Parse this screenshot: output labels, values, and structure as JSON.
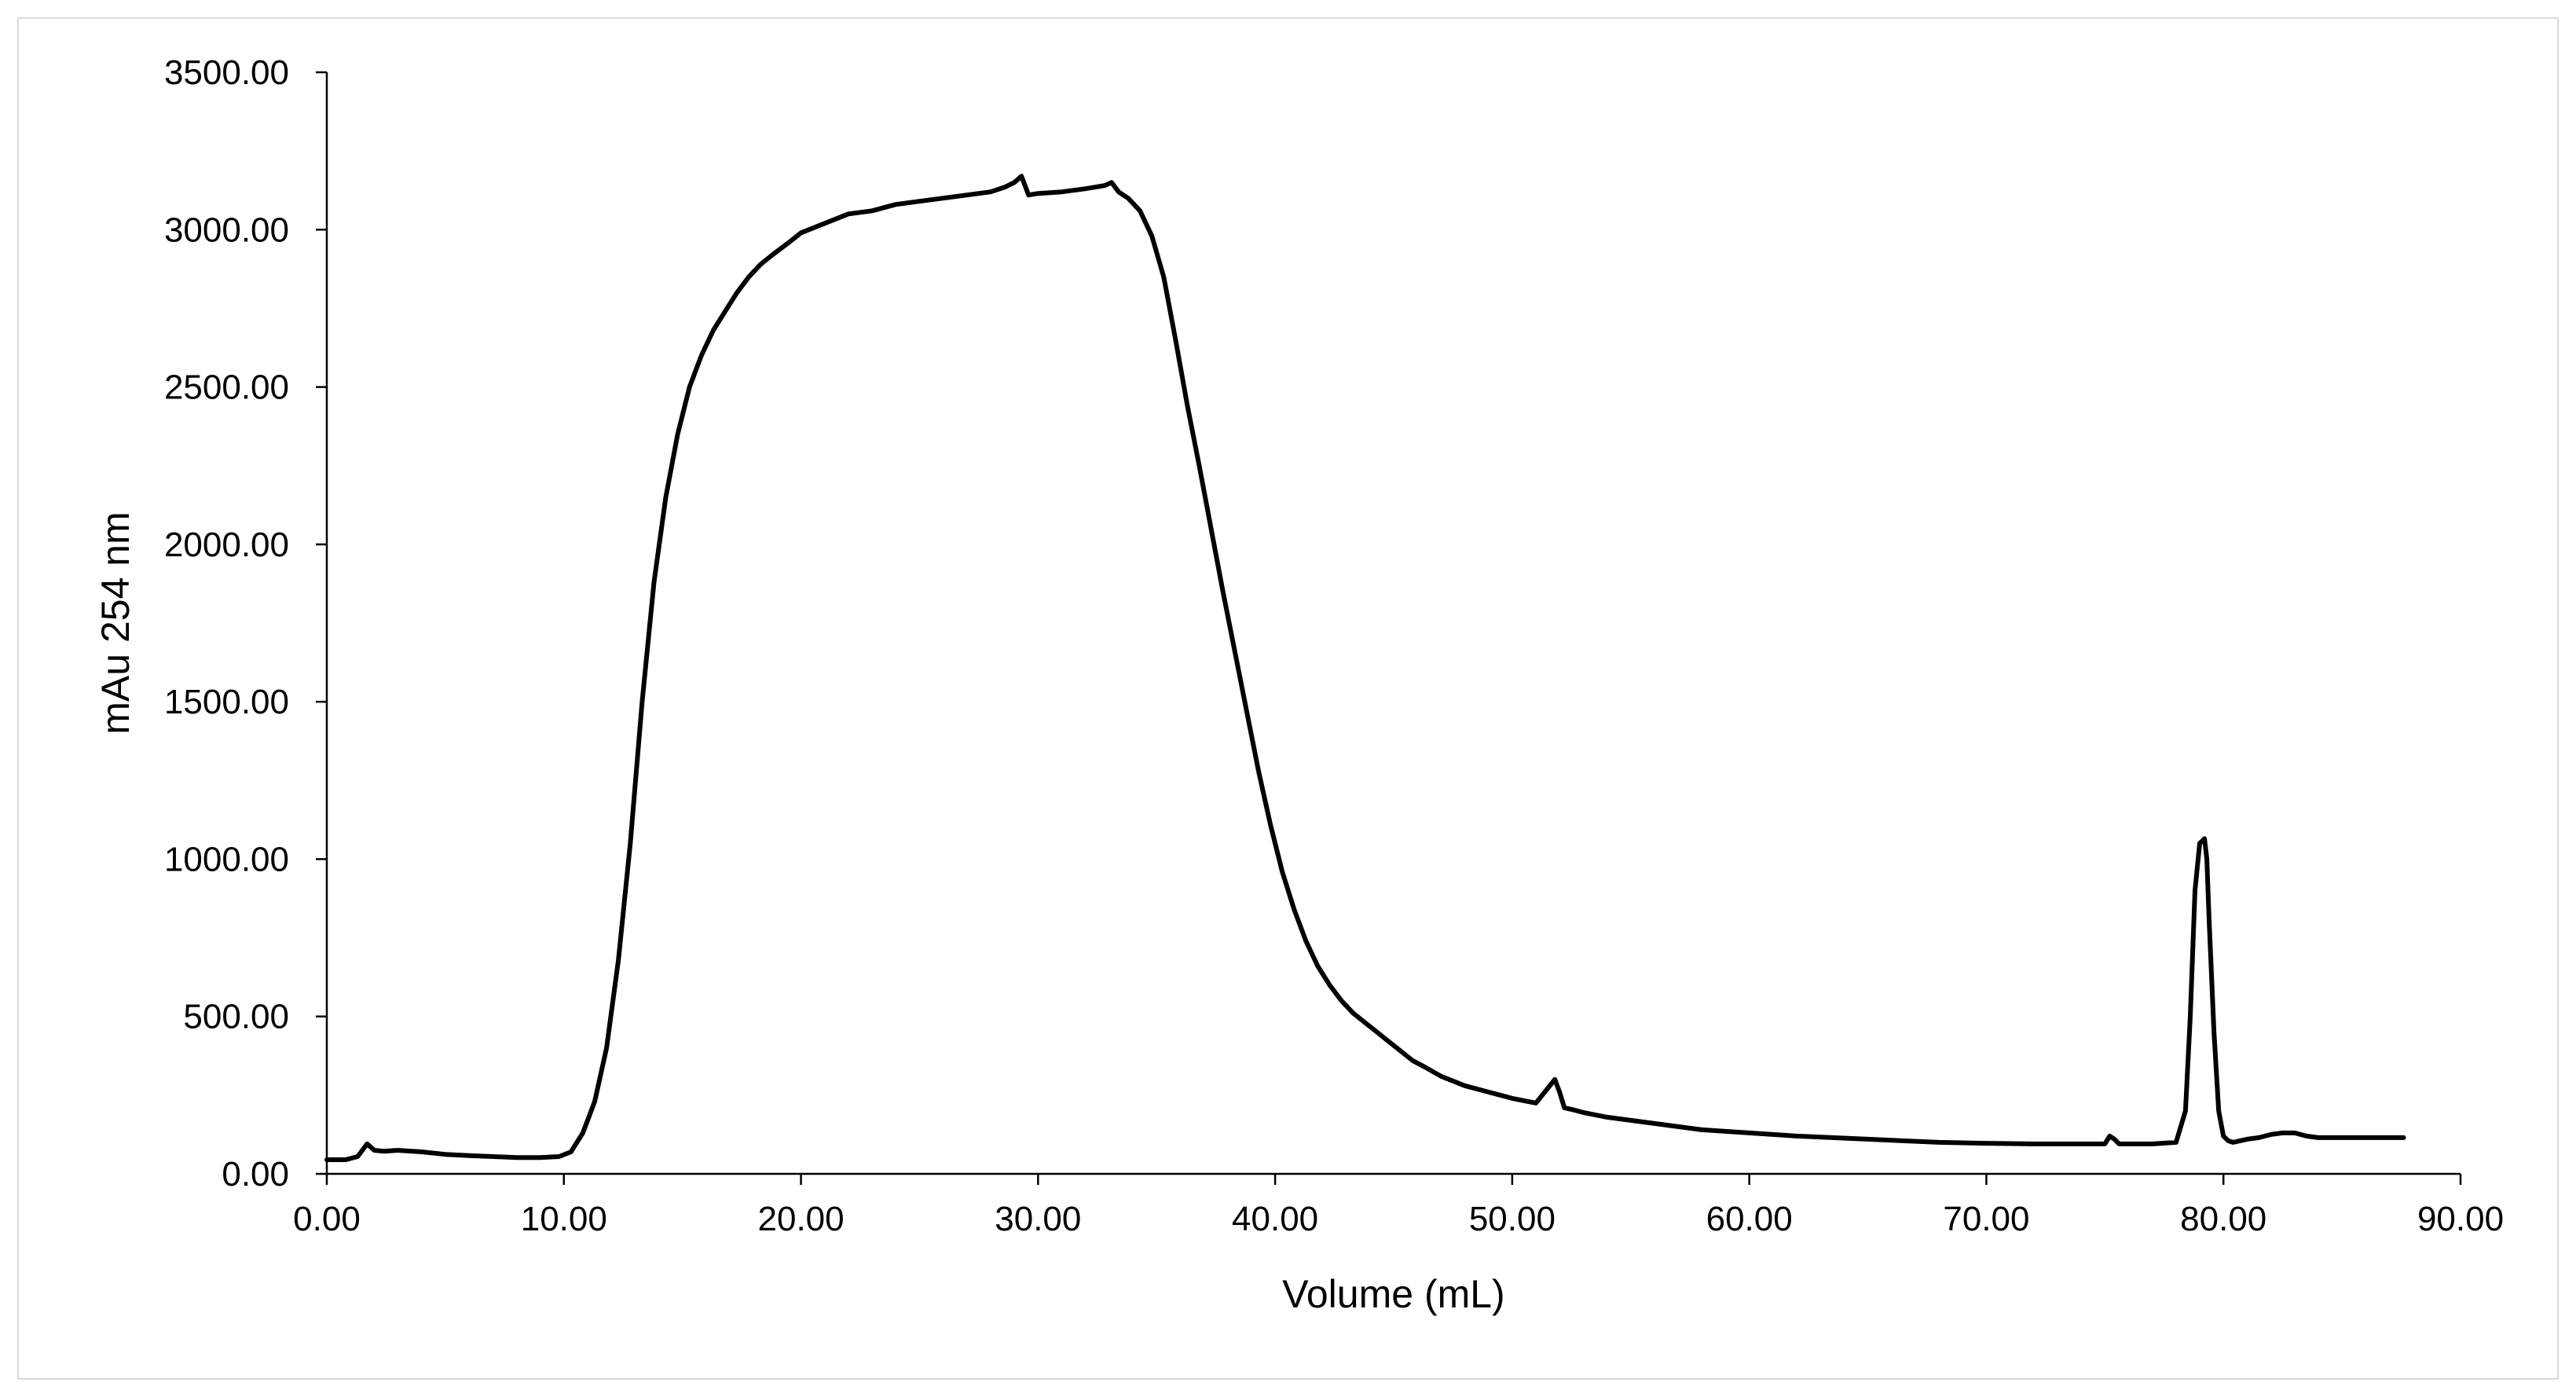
{
  "chart_data": {
    "type": "line",
    "title": "",
    "xlabel": "Volume (mL)",
    "ylabel": "mAu 254 nm",
    "xlim": [
      0,
      90
    ],
    "ylim": [
      0,
      3500
    ],
    "x_ticks": [
      "0.00",
      "10.00",
      "20.00",
      "30.00",
      "40.00",
      "50.00",
      "60.00",
      "70.00",
      "80.00",
      "90.00"
    ],
    "y_ticks": [
      "0.00",
      "500.00",
      "1000.00",
      "1500.00",
      "2000.00",
      "2500.00",
      "3000.00",
      "3500.00"
    ],
    "grid": false,
    "legend": "none",
    "line_color": "#000000",
    "series": [
      {
        "x": [
          0.0,
          0.8,
          1.3,
          1.7,
          2.0,
          2.4,
          3.0,
          4.0,
          5.0,
          6.0,
          7.0,
          8.0,
          9.0,
          9.8,
          10.3,
          10.8,
          11.3,
          11.8,
          12.3,
          12.8,
          13.3,
          13.8,
          14.3,
          14.8,
          15.3,
          15.8,
          16.3,
          16.8,
          17.3,
          17.8,
          18.3,
          18.8,
          19.5,
          20.0,
          21.0,
          22.0,
          23.0,
          24.0,
          25.0,
          26.0,
          27.0,
          28.0,
          28.6,
          29.0,
          29.3,
          29.6,
          30.0,
          31.0,
          32.0,
          32.8,
          33.1,
          33.4,
          33.8,
          34.3,
          34.8,
          35.3,
          35.8,
          36.3,
          36.8,
          37.3,
          37.8,
          38.3,
          38.8,
          39.3,
          39.8,
          40.3,
          40.8,
          41.3,
          41.8,
          42.3,
          42.8,
          43.3,
          43.8,
          44.3,
          44.8,
          45.3,
          45.8,
          46.3,
          47.0,
          48.0,
          49.0,
          50.0,
          51.0,
          51.8,
          52.0,
          52.2,
          52.5,
          53.0,
          54.0,
          56.0,
          58.0,
          60.0,
          62.0,
          65.0,
          68.0,
          70.0,
          72.0,
          74.0,
          75.0,
          75.2,
          75.4,
          75.6,
          76.0,
          77.0,
          78.0,
          78.4,
          78.6,
          78.8,
          79.0,
          79.2,
          79.3,
          79.4,
          79.6,
          79.8,
          80.0,
          80.2,
          80.4,
          80.7,
          81.0,
          81.5,
          82.0,
          82.5,
          83.0,
          83.5,
          84.0,
          84.5,
          85.0,
          86.0,
          87.0,
          87.6
        ],
        "y": [
          45,
          45,
          55,
          95,
          75,
          72,
          75,
          70,
          62,
          58,
          55,
          52,
          52,
          55,
          70,
          130,
          230,
          400,
          680,
          1050,
          1500,
          1880,
          2150,
          2350,
          2500,
          2600,
          2680,
          2740,
          2800,
          2850,
          2890,
          2920,
          2960,
          2990,
          3020,
          3050,
          3060,
          3080,
          3090,
          3100,
          3110,
          3120,
          3135,
          3150,
          3170,
          3110,
          3115,
          3120,
          3130,
          3140,
          3150,
          3120,
          3100,
          3060,
          2980,
          2850,
          2650,
          2440,
          2250,
          2050,
          1850,
          1660,
          1470,
          1280,
          1110,
          960,
          840,
          740,
          660,
          600,
          550,
          510,
          480,
          450,
          420,
          390,
          360,
          340,
          310,
          280,
          260,
          240,
          225,
          300,
          260,
          210,
          205,
          195,
          180,
          160,
          140,
          130,
          120,
          110,
          100,
          97,
          95,
          95,
          95,
          120,
          110,
          95,
          95,
          95,
          100,
          200,
          500,
          900,
          1050,
          1065,
          1000,
          800,
          450,
          200,
          120,
          105,
          100,
          105,
          110,
          115,
          125,
          130,
          130,
          120,
          115,
          115,
          115,
          115,
          115,
          115
        ]
      }
    ]
  }
}
